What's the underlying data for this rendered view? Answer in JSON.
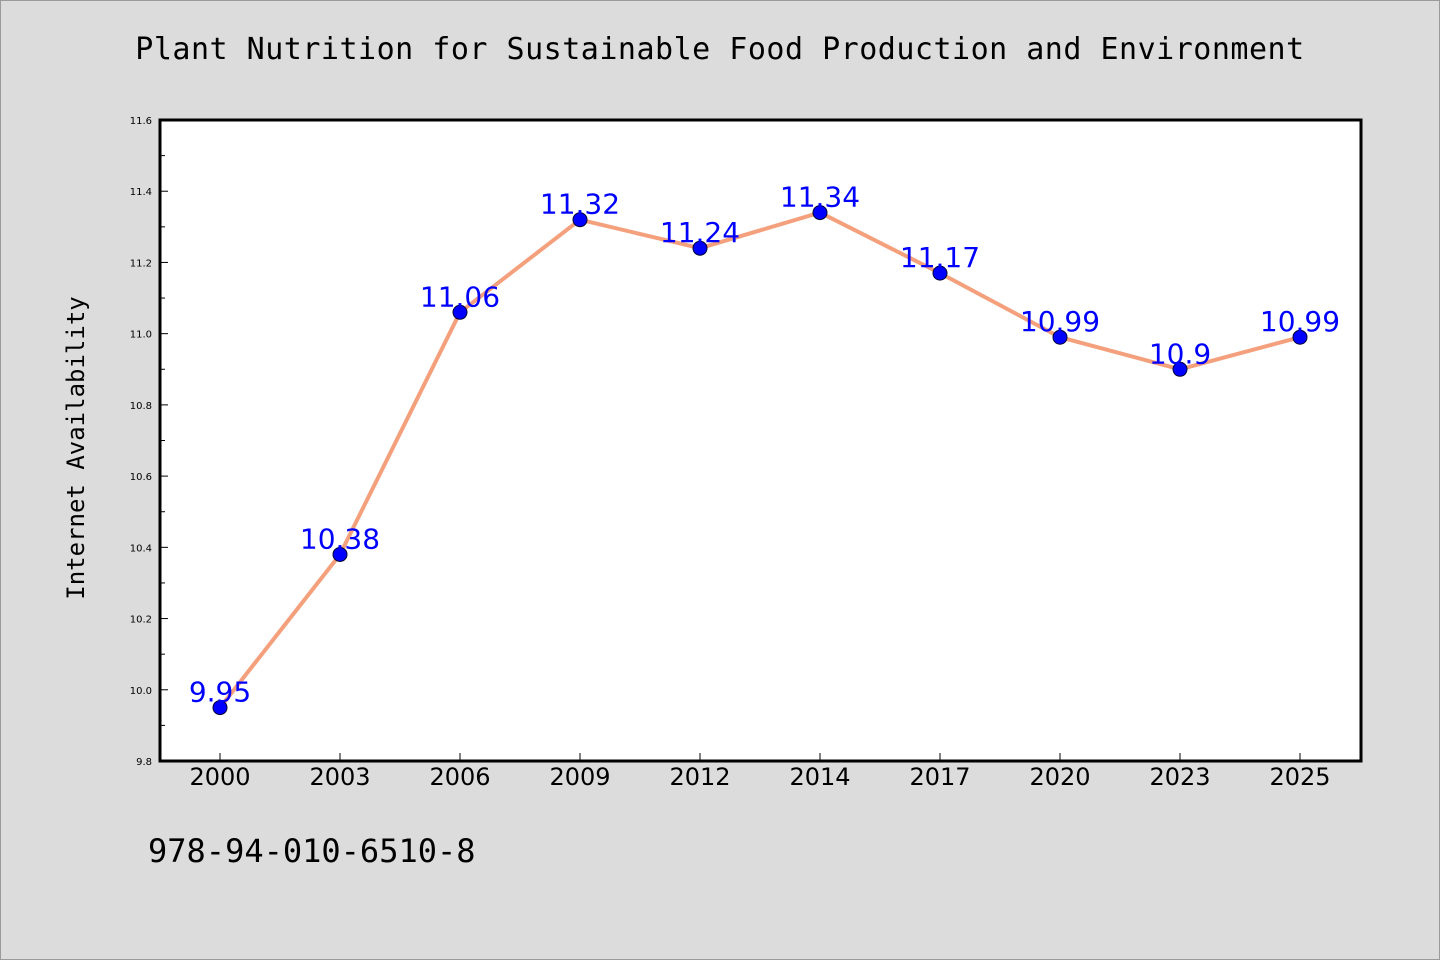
{
  "chart_data": {
    "type": "line",
    "title": "Plant Nutrition for Sustainable Food Production and Environment",
    "xlabel": "",
    "ylabel": "Internet Availability",
    "categories": [
      "2000",
      "2003",
      "2006",
      "2009",
      "2012",
      "2014",
      "2017",
      "2020",
      "2023",
      "2025"
    ],
    "series": [
      {
        "values": [
          9.95,
          10.38,
          11.06,
          11.32,
          11.24,
          11.34,
          11.17,
          10.99,
          10.9,
          10.99
        ],
        "data_labels": [
          "9.95",
          "10.38",
          "11.06",
          "11.32",
          "11.24",
          "11.34",
          "11.17",
          "10.99",
          "10.9",
          "10.99"
        ],
        "line_color": "#f4a07c",
        "marker_color": "#0000ff"
      }
    ],
    "ylim": [
      9.8,
      11.6
    ],
    "yticks": [
      "9.8",
      "10.0",
      "10.2",
      "10.4",
      "10.6",
      "10.8",
      "11.0",
      "11.2",
      "11.4",
      "11.6"
    ],
    "grid": false,
    "legend": "none",
    "label_color": "#0000ff"
  },
  "footer": {
    "code": "978-94-010-6510-8"
  }
}
